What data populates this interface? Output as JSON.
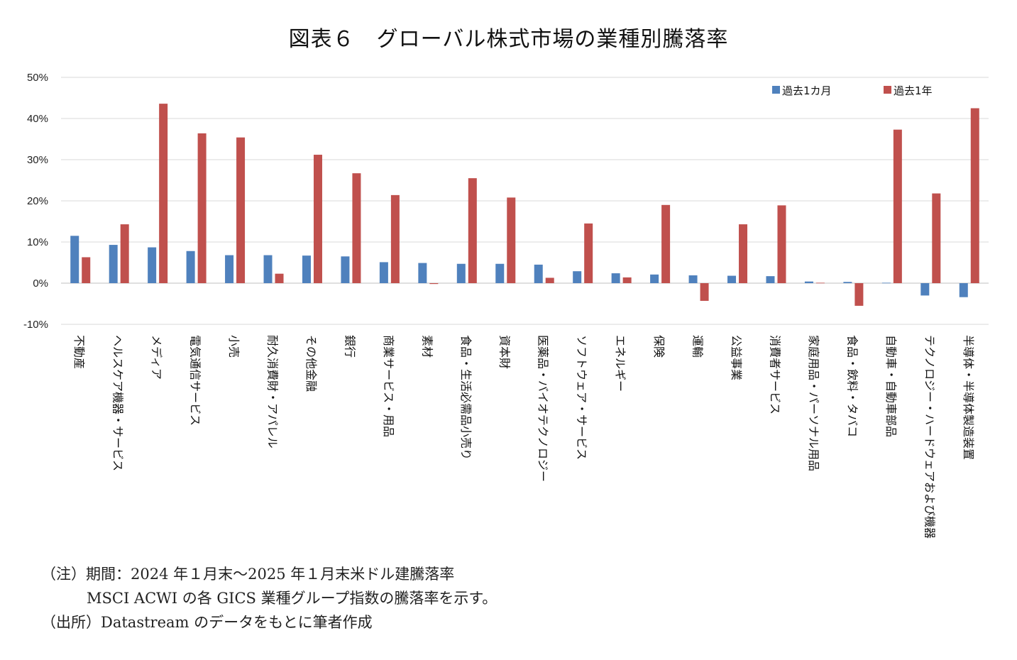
{
  "chart_data": {
    "type": "bar",
    "title": "図表６　グローバル株式市場の業種別騰落率",
    "xlabel": "",
    "ylabel": "",
    "ylim": [
      -10,
      50
    ],
    "yticks": [
      "50%",
      "40%",
      "30%",
      "20%",
      "10%",
      "0%",
      "-10%"
    ],
    "ytick_values": [
      50,
      40,
      30,
      20,
      10,
      0,
      -10
    ],
    "grid": true,
    "legend_position": "top-right",
    "categories": [
      "不動産",
      "ヘルスケア機器・サービス",
      "メディア",
      "電気通信サービス",
      "小売",
      "耐久消費財・アパレル",
      "その他金融",
      "銀行",
      "商業サービス・用品",
      "素材",
      "食品・生活必需品小売り",
      "資本財",
      "医薬品・バイオテクノロジー",
      "ソフトウェア・サービス",
      "エネルギー",
      "保険",
      "運輸",
      "公益事業",
      "消費者サービス",
      "家庭用品・パーソナル用品",
      "食品・飲料・タバコ",
      "自動車・自動車部品",
      "テクノロジー・ハードウェアおよび機器",
      "半導体・半導体製造装置"
    ],
    "series": [
      {
        "name": "過去1カ月",
        "color": "#4F81BD",
        "values": [
          11.5,
          9.3,
          8.7,
          7.8,
          6.8,
          6.8,
          6.7,
          6.5,
          5.1,
          4.9,
          4.7,
          4.7,
          4.5,
          2.9,
          2.4,
          2.1,
          1.9,
          1.8,
          1.7,
          0.4,
          0.3,
          0.1,
          -3.0,
          -3.4
        ]
      },
      {
        "name": "過去1年",
        "color": "#C0504D",
        "values": [
          6.3,
          14.3,
          43.6,
          36.4,
          35.4,
          2.3,
          31.2,
          26.7,
          21.4,
          -0.2,
          25.5,
          20.8,
          1.3,
          14.5,
          1.4,
          19.0,
          -4.3,
          14.3,
          18.9,
          0.1,
          -5.5,
          37.3,
          21.8,
          42.5
        ]
      }
    ]
  },
  "notes": {
    "line1": "（注）期間：2024 年１月末～2025 年１月末米ドル建騰落率",
    "line2": "MSCI ACWI の各 GICS 業種グループ指数の騰落率を示す。",
    "line3": "（出所）Datastream のデータをもとに筆者作成"
  }
}
